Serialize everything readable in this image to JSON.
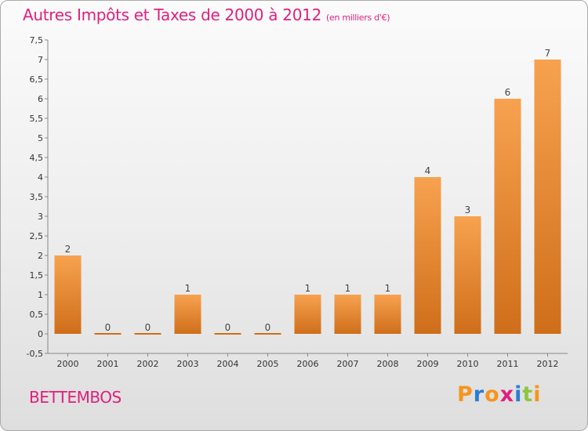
{
  "title": "Autres Impôts et Taxes de 2000 à 2012",
  "title_unit": "(en milliers d'€)",
  "commune": "BETTEMBOS",
  "logo": {
    "letters": [
      "P",
      "r",
      "o",
      "x",
      "i",
      "t",
      "i"
    ],
    "colors": [
      "#f7941d",
      "#2b7cd3",
      "#f7941d",
      "#e0207d",
      "#2b7cd3",
      "#8dc63f",
      "#f7941d"
    ]
  },
  "colors": {
    "title": "#e0207d",
    "bar_light": "#f7a24f",
    "bar_dark": "#cf6e1a"
  },
  "chart_data": {
    "type": "bar",
    "title": "Autres Impôts et Taxes de 2000 à 2012",
    "categories": [
      "2000",
      "2001",
      "2002",
      "2003",
      "2004",
      "2005",
      "2006",
      "2007",
      "2008",
      "2009",
      "2010",
      "2011",
      "2012"
    ],
    "values": [
      2,
      0,
      0,
      1,
      0,
      0,
      1,
      1,
      1,
      4,
      3,
      6,
      7
    ],
    "data_labels": [
      "2",
      "0",
      "0",
      "1",
      "0",
      "0",
      "1",
      "1",
      "1",
      "4",
      "3",
      "6",
      "7"
    ],
    "y_ticks": [
      "-0,5",
      "0",
      "0,5",
      "1",
      "1,5",
      "2",
      "2,5",
      "3",
      "3,5",
      "4",
      "4,5",
      "5",
      "5,5",
      "6",
      "6,5",
      "7",
      "7,5"
    ],
    "ylim": [
      -0.5,
      7.5
    ],
    "xlabel": "",
    "ylabel": "",
    "grid": false,
    "legend": "none"
  }
}
